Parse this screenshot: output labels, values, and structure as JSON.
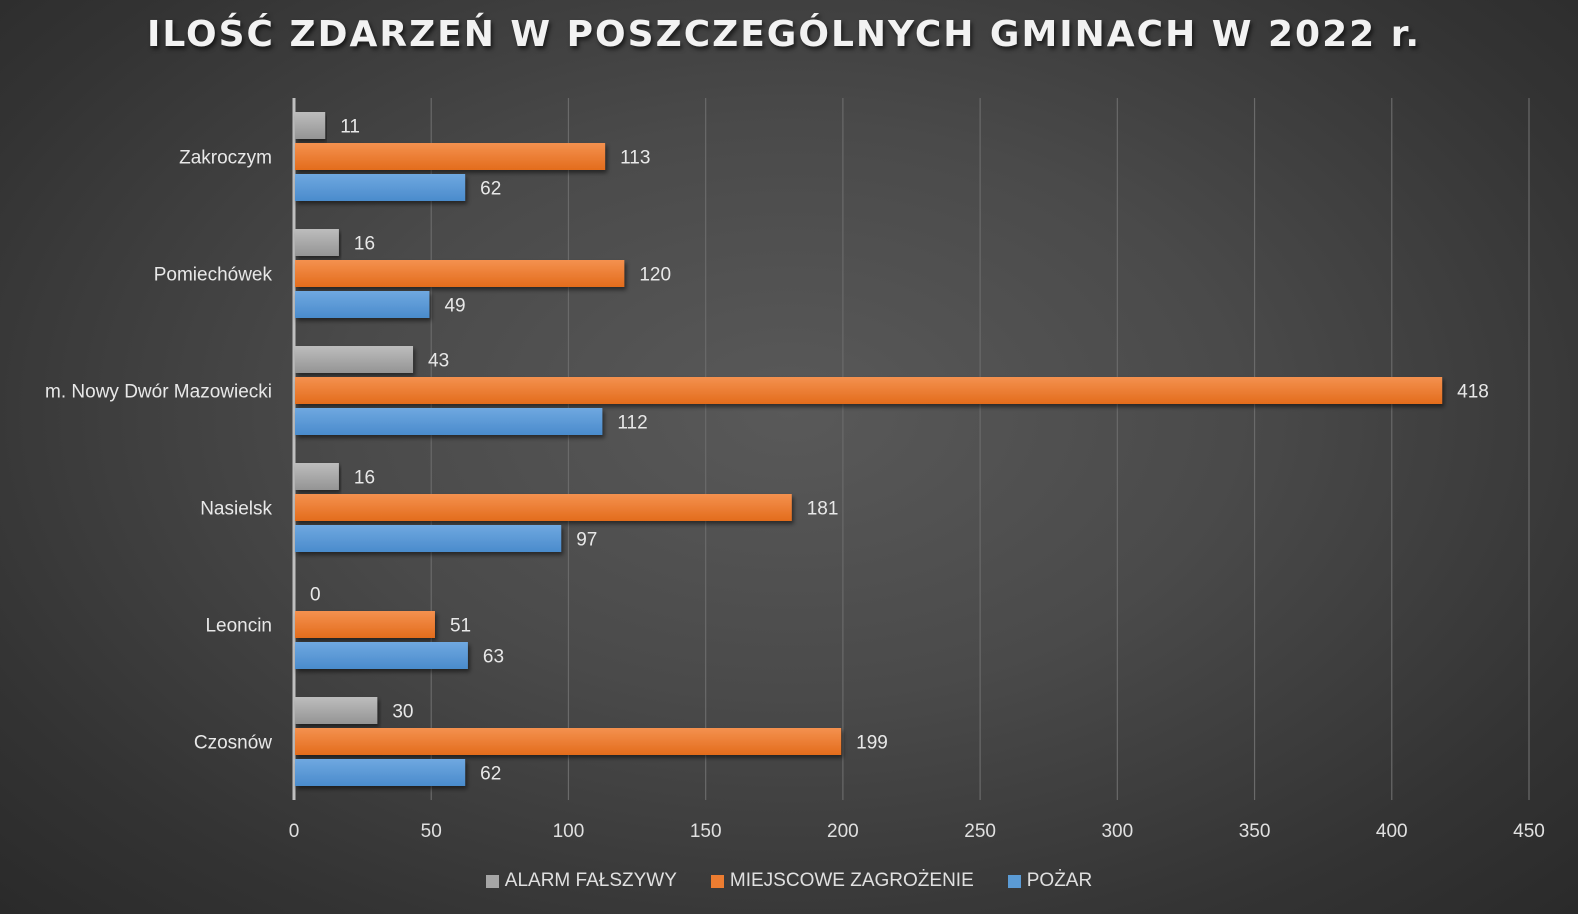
{
  "chart_data": {
    "type": "bar",
    "orientation": "horizontal",
    "title": "ILOŚĆ ZDARZEŃ W POSZCZEGÓLNYCH GMINACH W 2022 r.",
    "categories": [
      "Zakroczym",
      "Pomiechówek",
      "m. Nowy Dwór Mazowiecki",
      "Nasielsk",
      "Leoncin",
      "Czosnów"
    ],
    "series": [
      {
        "name": "ALARM FAŁSZYWY",
        "color": "#a6a6a6",
        "values": [
          11,
          16,
          43,
          16,
          0,
          30
        ]
      },
      {
        "name": "MIEJSCOWE ZAGROŻENIE",
        "color": "#ed7d31",
        "values": [
          113,
          120,
          418,
          181,
          51,
          199
        ]
      },
      {
        "name": "POŻAR",
        "color": "#5b9bd5",
        "values": [
          62,
          49,
          112,
          97,
          63,
          62
        ]
      }
    ],
    "xlim": [
      0,
      450
    ],
    "xticks": [
      "0",
      "50",
      "100",
      "150",
      "200",
      "250",
      "300",
      "350",
      "400",
      "450"
    ],
    "xlabel": "",
    "ylabel": "",
    "grid": true,
    "legend_position": "bottom"
  }
}
